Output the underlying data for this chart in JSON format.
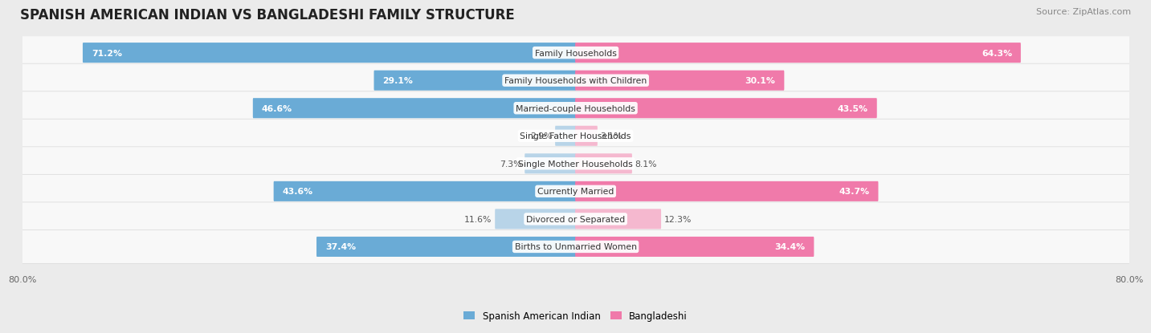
{
  "title": "SPANISH AMERICAN INDIAN VS BANGLADESHI FAMILY STRUCTURE",
  "source": "Source: ZipAtlas.com",
  "categories": [
    "Family Households",
    "Family Households with Children",
    "Married-couple Households",
    "Single Father Households",
    "Single Mother Households",
    "Currently Married",
    "Divorced or Separated",
    "Births to Unmarried Women"
  ],
  "left_values": [
    71.2,
    29.1,
    46.6,
    2.9,
    7.3,
    43.6,
    11.6,
    37.4
  ],
  "right_values": [
    64.3,
    30.1,
    43.5,
    3.1,
    8.1,
    43.7,
    12.3,
    34.4
  ],
  "left_color_strong": "#6aabd6",
  "left_color_light": "#b8d4e8",
  "right_color_strong": "#f07aaa",
  "right_color_light": "#f5b8cf",
  "x_max": 80.0,
  "background_color": "#ebebeb",
  "row_bg_color": "#f8f8f8",
  "row_bg_edge": "#dddddd",
  "label_fontsize": 7.8,
  "value_fontsize": 7.8,
  "title_fontsize": 12,
  "source_fontsize": 8,
  "legend_label_left": "Spanish American Indian",
  "legend_label_right": "Bangladeshi",
  "x_tick_label": "80.0%",
  "threshold_strong": 15.0
}
